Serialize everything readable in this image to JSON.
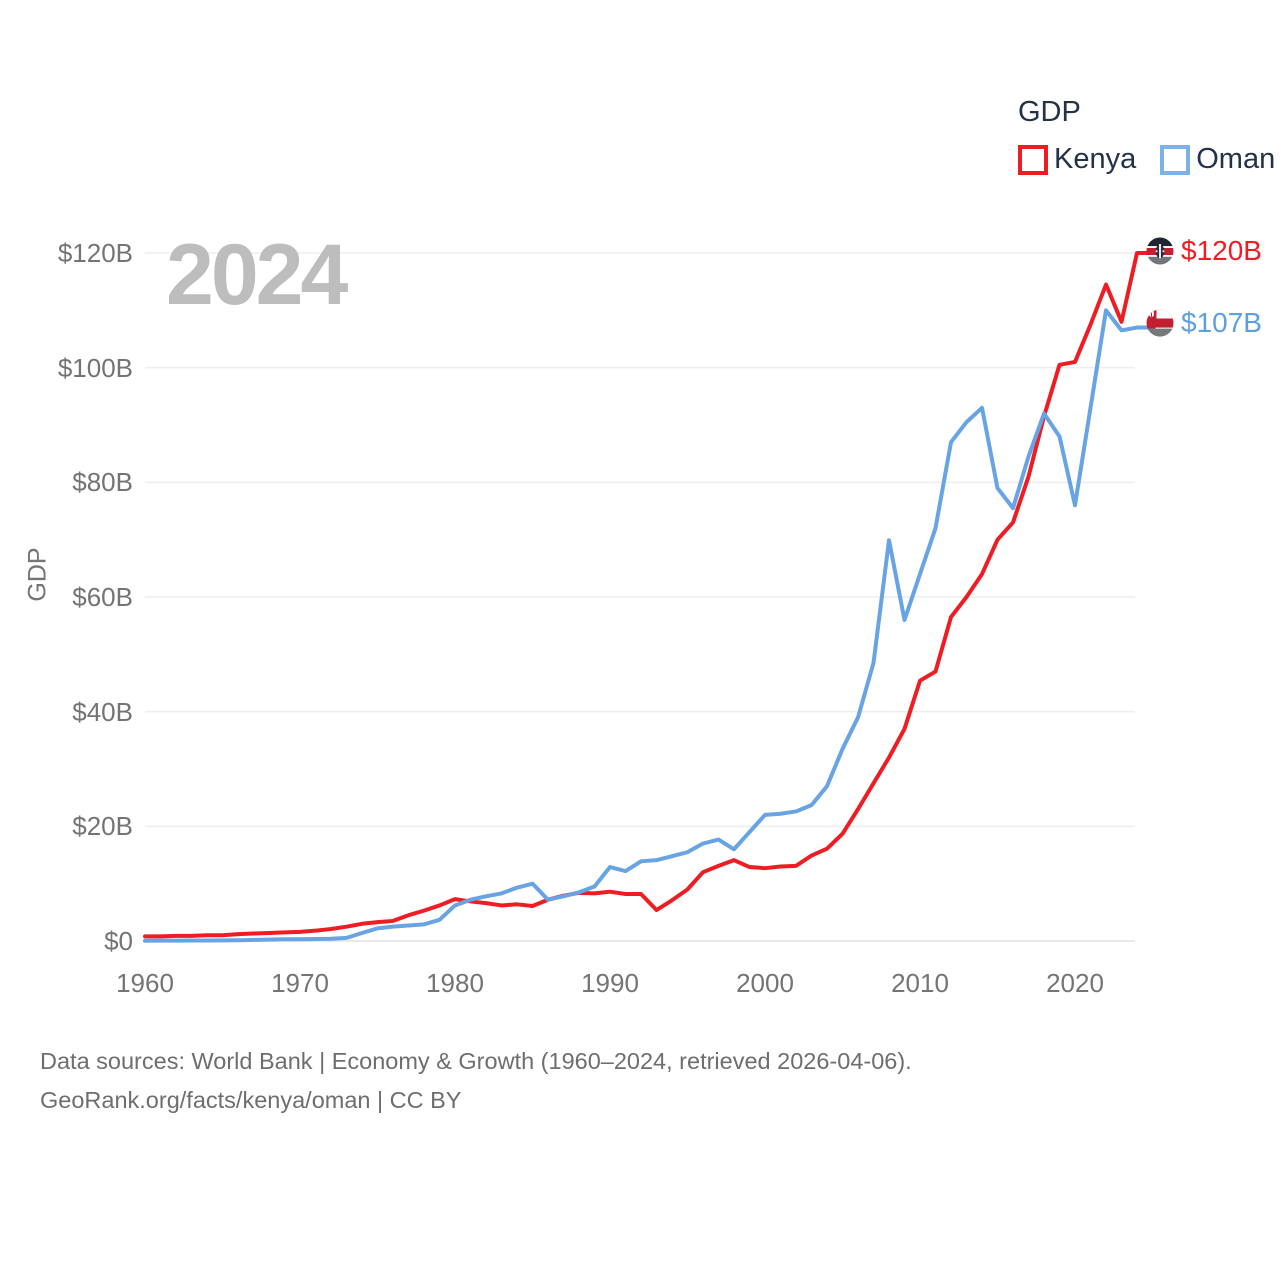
{
  "watermark": "2024",
  "legend": {
    "title": "GDP",
    "series": [
      {
        "label": "Kenya",
        "color": "#ee1d23"
      },
      {
        "label": "Oman",
        "color": "#7db1ea"
      }
    ]
  },
  "end_labels": [
    {
      "country": "Kenya",
      "value": "$120B",
      "color": "#ee1d23"
    },
    {
      "country": "Oman",
      "value": "$107B",
      "color": "#5e9fe0"
    }
  ],
  "footer": {
    "line1": "Data sources: World Bank | Economy & Growth (1960–2024, retrieved 2026-04-06).",
    "line2": "GeoRank.org/facts/kenya/oman | CC BY"
  },
  "chart_data": {
    "type": "line",
    "title": "GDP",
    "ylabel": "GDP",
    "xlim": [
      1960,
      2024
    ],
    "ylim": [
      0,
      125
    ],
    "grid": "horizontal",
    "legend_position": "top-right",
    "y_tick_labels": [
      "$0",
      "$20B",
      "$40B",
      "$60B",
      "$80B",
      "$100B",
      "$120B"
    ],
    "y_tick_values": [
      0,
      20,
      40,
      60,
      80,
      100,
      120
    ],
    "x_tick_labels": [
      "1960",
      "1970",
      "1980",
      "1990",
      "2000",
      "2010",
      "2020"
    ],
    "x_tick_values": [
      1960,
      1970,
      1980,
      1990,
      2000,
      2010,
      2020
    ],
    "x": [
      1960,
      1961,
      1962,
      1963,
      1964,
      1965,
      1966,
      1967,
      1968,
      1969,
      1970,
      1971,
      1972,
      1973,
      1974,
      1975,
      1976,
      1977,
      1978,
      1979,
      1980,
      1981,
      1982,
      1983,
      1984,
      1985,
      1986,
      1987,
      1988,
      1989,
      1990,
      1991,
      1992,
      1993,
      1994,
      1995,
      1996,
      1997,
      1998,
      1999,
      2000,
      2001,
      2002,
      2003,
      2004,
      2005,
      2006,
      2007,
      2008,
      2009,
      2010,
      2011,
      2012,
      2013,
      2014,
      2015,
      2016,
      2017,
      2018,
      2019,
      2020,
      2021,
      2022,
      2023,
      2024
    ],
    "series": [
      {
        "name": "Kenya",
        "color": "#ee1d23",
        "end_value_label": "$120B",
        "values": [
          0.8,
          0.8,
          0.9,
          0.9,
          1.0,
          1.0,
          1.2,
          1.3,
          1.4,
          1.5,
          1.6,
          1.8,
          2.1,
          2.5,
          3.0,
          3.3,
          3.5,
          4.5,
          5.3,
          6.2,
          7.3,
          6.9,
          6.6,
          6.2,
          6.4,
          6.1,
          7.2,
          7.9,
          8.4,
          8.3,
          8.6,
          8.2,
          8.2,
          5.4,
          7.1,
          9.0,
          12.0,
          13.1,
          14.1,
          12.9,
          12.7,
          13.0,
          13.1,
          14.9,
          16.1,
          18.7,
          23.0,
          27.5,
          32.0,
          37.0,
          45.4,
          47.0,
          56.5,
          60.0,
          64.0,
          70.0,
          73.0,
          81.0,
          91.5,
          100.5,
          101.0,
          107.5,
          114.5,
          108.0,
          120.0
        ]
      },
      {
        "name": "Oman",
        "color": "#68a3e3",
        "end_value_label": "$107B",
        "values": [
          0.05,
          0.06,
          0.07,
          0.08,
          0.09,
          0.1,
          0.12,
          0.2,
          0.25,
          0.3,
          0.3,
          0.35,
          0.4,
          0.55,
          1.4,
          2.2,
          2.5,
          2.7,
          2.9,
          3.7,
          6.2,
          7.2,
          7.8,
          8.3,
          9.3,
          10.0,
          7.2,
          7.8,
          8.5,
          9.5,
          12.9,
          12.2,
          13.9,
          14.1,
          14.8,
          15.5,
          17.0,
          17.7,
          16.0,
          19.0,
          22.0,
          22.2,
          22.6,
          23.7,
          27.0,
          33.5,
          39.0,
          48.5,
          69.9,
          56.0,
          64.0,
          72.0,
          87.0,
          90.5,
          93.0,
          79.0,
          75.5,
          84.5,
          92.0,
          88.0,
          76.0,
          93.0,
          110.0,
          106.5,
          107.0
        ]
      }
    ]
  }
}
